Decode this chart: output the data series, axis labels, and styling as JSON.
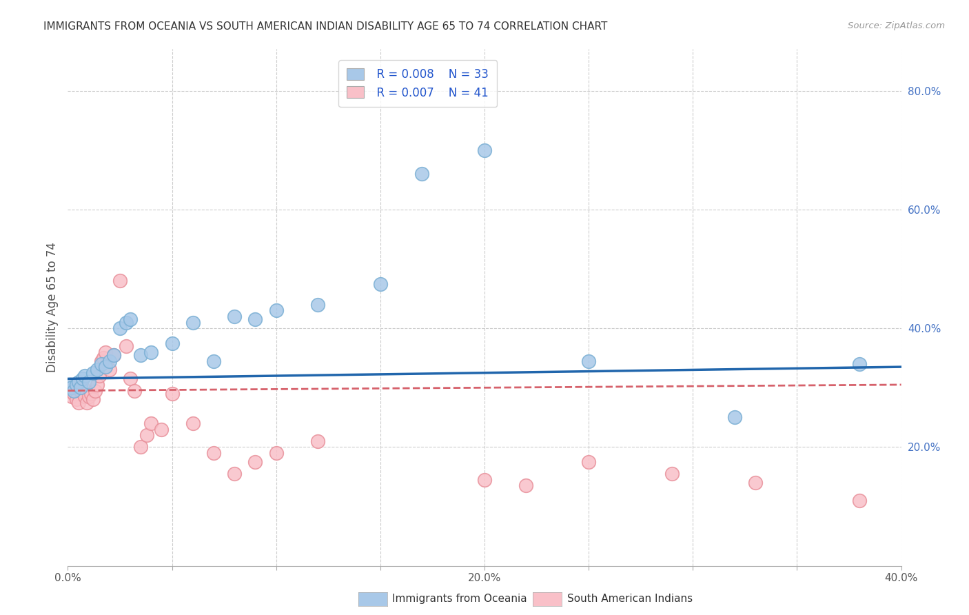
{
  "title": "IMMIGRANTS FROM OCEANIA VS SOUTH AMERICAN INDIAN DISABILITY AGE 65 TO 74 CORRELATION CHART",
  "source": "Source: ZipAtlas.com",
  "ylabel": "Disability Age 65 to 74",
  "legend_label1": "Immigrants from Oceania",
  "legend_label2": "South American Indians",
  "legend_r1": "R = 0.008",
  "legend_n1": "N = 33",
  "legend_r2": "R = 0.007",
  "legend_n2": "N = 41",
  "xlim": [
    0.0,
    0.4
  ],
  "ylim": [
    0.0,
    0.87
  ],
  "xticks": [
    0.0,
    0.05,
    0.1,
    0.15,
    0.2,
    0.25,
    0.3,
    0.35,
    0.4
  ],
  "xtick_labels": [
    "0.0%",
    "",
    "",
    "",
    "20.0%",
    "",
    "",
    "",
    "40.0%"
  ],
  "yticks_right": [
    0.2,
    0.4,
    0.6,
    0.8
  ],
  "ytick_labels_right": [
    "20.0%",
    "40.0%",
    "60.0%",
    "80.0%"
  ],
  "blue_color": "#a8c8e8",
  "blue_edge_color": "#7aafd4",
  "blue_line_color": "#2166ac",
  "pink_color": "#f9c0c8",
  "pink_edge_color": "#e8909a",
  "pink_line_color": "#d6616b",
  "background_color": "#ffffff",
  "grid_color": "#cccccc",
  "blue_x": [
    0.001,
    0.002,
    0.003,
    0.004,
    0.005,
    0.006,
    0.007,
    0.008,
    0.01,
    0.012,
    0.014,
    0.016,
    0.018,
    0.02,
    0.022,
    0.025,
    0.028,
    0.03,
    0.035,
    0.04,
    0.05,
    0.06,
    0.07,
    0.08,
    0.09,
    0.1,
    0.12,
    0.15,
    0.17,
    0.2,
    0.25,
    0.32,
    0.38
  ],
  "blue_y": [
    0.305,
    0.3,
    0.295,
    0.305,
    0.31,
    0.3,
    0.315,
    0.32,
    0.31,
    0.325,
    0.33,
    0.34,
    0.335,
    0.345,
    0.355,
    0.4,
    0.41,
    0.415,
    0.355,
    0.36,
    0.375,
    0.41,
    0.345,
    0.42,
    0.415,
    0.43,
    0.44,
    0.475,
    0.66,
    0.7,
    0.345,
    0.25,
    0.34
  ],
  "pink_x": [
    0.001,
    0.002,
    0.003,
    0.004,
    0.005,
    0.006,
    0.007,
    0.008,
    0.009,
    0.01,
    0.011,
    0.012,
    0.013,
    0.014,
    0.015,
    0.016,
    0.017,
    0.018,
    0.02,
    0.022,
    0.025,
    0.028,
    0.03,
    0.032,
    0.035,
    0.038,
    0.04,
    0.045,
    0.05,
    0.06,
    0.07,
    0.08,
    0.09,
    0.1,
    0.12,
    0.2,
    0.22,
    0.25,
    0.29,
    0.33,
    0.38
  ],
  "pink_y": [
    0.295,
    0.285,
    0.29,
    0.28,
    0.275,
    0.295,
    0.3,
    0.285,
    0.275,
    0.285,
    0.29,
    0.28,
    0.295,
    0.305,
    0.32,
    0.345,
    0.35,
    0.36,
    0.33,
    0.355,
    0.48,
    0.37,
    0.315,
    0.295,
    0.2,
    0.22,
    0.24,
    0.23,
    0.29,
    0.24,
    0.19,
    0.155,
    0.175,
    0.19,
    0.21,
    0.145,
    0.135,
    0.175,
    0.155,
    0.14,
    0.11
  ],
  "blue_trendline_x": [
    0.0,
    0.4
  ],
  "blue_trendline_y": [
    0.315,
    0.335
  ],
  "pink_trendline_x": [
    0.0,
    0.4
  ],
  "pink_trendline_y": [
    0.295,
    0.305
  ]
}
